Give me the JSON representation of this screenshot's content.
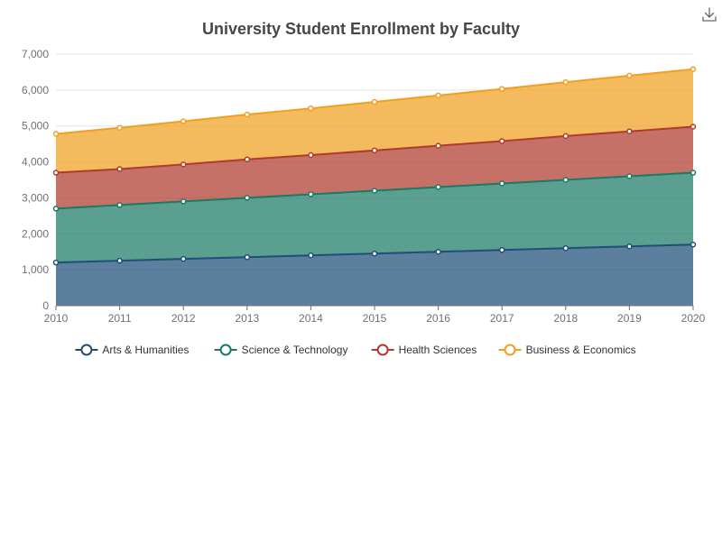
{
  "chart_data": {
    "type": "area",
    "stacked": true,
    "title": "University Student Enrollment by Faculty",
    "xlabel": "",
    "ylabel": "",
    "x": [
      "2010",
      "2011",
      "2012",
      "2013",
      "2014",
      "2015",
      "2016",
      "2017",
      "2018",
      "2019",
      "2020"
    ],
    "ylim": [
      0,
      7000
    ],
    "yticks": [
      0,
      1000,
      2000,
      3000,
      4000,
      5000,
      6000,
      7000
    ],
    "ytick_labels": [
      "0",
      "1,000",
      "2,000",
      "3,000",
      "4,000",
      "5,000",
      "6,000",
      "7,000"
    ],
    "grid": true,
    "legend_position": "bottom",
    "series": [
      {
        "name": "Arts & Humanities",
        "color": "#1f4e79",
        "values": [
          1200,
          1250,
          1300,
          1350,
          1400,
          1450,
          1500,
          1550,
          1600,
          1650,
          1700
        ]
      },
      {
        "name": "Science & Technology",
        "color": "#1a7a64",
        "values": [
          1500,
          1550,
          1600,
          1650,
          1700,
          1750,
          1800,
          1850,
          1900,
          1950,
          2000
        ]
      },
      {
        "name": "Health Sciences",
        "color": "#b03a2e",
        "values": [
          1000,
          1000,
          1030,
          1070,
          1090,
          1120,
          1150,
          1180,
          1220,
          1250,
          1280
        ]
      },
      {
        "name": "Business & Economics",
        "color": "#f0a020",
        "values": [
          1080,
          1150,
          1200,
          1250,
          1300,
          1350,
          1400,
          1450,
          1500,
          1550,
          1600
        ]
      }
    ]
  },
  "toolbar": {
    "download_icon": "download-icon"
  }
}
